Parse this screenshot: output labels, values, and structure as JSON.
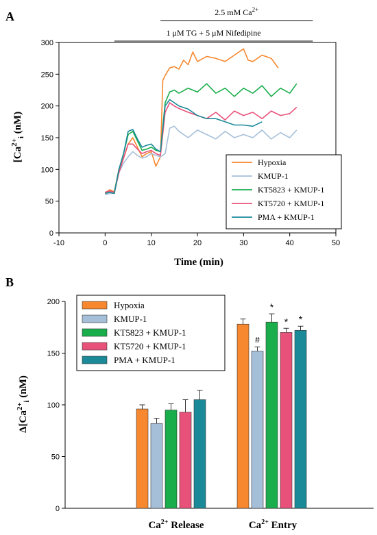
{
  "colors": {
    "hypoxia": "#f7882f",
    "kmup": "#a6bfd9",
    "kt5823": "#1aad4b",
    "kt5720": "#e8517a",
    "pma": "#1a8a98"
  },
  "chart_data": [
    {
      "panel": "A",
      "type": "line",
      "xlabel": "Time (min)",
      "ylabel": "[Ca2+]i (nM)",
      "xlim": [
        -10,
        50
      ],
      "ylim": [
        0,
        300
      ],
      "xticks": [
        "-10",
        "0",
        "10",
        "20",
        "30",
        "40",
        "50"
      ],
      "yticks": [
        "0",
        "50",
        "100",
        "150",
        "200",
        "250",
        "300"
      ],
      "annotations": [
        {
          "text": "2.5 mM Ca",
          "superscript": "2+",
          "x_start": 12,
          "x_end": 45
        },
        {
          "text": "1 μM TG + 5 μM Nifedipine",
          "x_start": 2,
          "x_end": 45
        }
      ],
      "legend_position": "bottom-right",
      "series": [
        {
          "name": "Hypoxia",
          "color_key": "hypoxia",
          "x": [
            0,
            1,
            2,
            3,
            4,
            5,
            6,
            7,
            8,
            9,
            10,
            11,
            12,
            12.5,
            13,
            14,
            15,
            16,
            17,
            18,
            19,
            20,
            22,
            24,
            26,
            28,
            30,
            31,
            32,
            34,
            36,
            37.5
          ],
          "y": [
            63,
            68,
            65,
            100,
            118,
            140,
            150,
            135,
            120,
            125,
            128,
            105,
            120,
            240,
            248,
            260,
            262,
            258,
            272,
            265,
            285,
            270,
            278,
            275,
            270,
            280,
            290,
            272,
            270,
            280,
            275,
            260
          ]
        },
        {
          "name": "KMUP-1",
          "color_key": "kmup",
          "x": [
            0,
            1,
            2,
            3,
            4,
            5,
            6,
            7,
            8,
            9,
            10,
            11,
            12,
            13,
            14,
            15,
            16,
            18,
            20,
            22,
            24,
            26,
            28,
            30,
            32,
            34,
            36,
            38,
            40,
            41.5
          ],
          "y": [
            60,
            62,
            62,
            95,
            110,
            120,
            128,
            122,
            118,
            120,
            125,
            122,
            120,
            125,
            165,
            168,
            160,
            150,
            162,
            155,
            148,
            160,
            150,
            155,
            150,
            162,
            148,
            158,
            150,
            162
          ]
        },
        {
          "name": "KT5823 + KMUP-1",
          "color_key": "kt5823",
          "x": [
            0,
            1,
            2,
            3,
            4,
            5,
            6,
            7,
            8,
            9,
            10,
            11,
            12,
            13,
            14,
            15,
            16,
            18,
            20,
            22,
            24,
            26,
            28,
            30,
            32,
            34,
            36,
            38,
            40,
            41.5
          ],
          "y": [
            62,
            66,
            64,
            100,
            125,
            155,
            160,
            145,
            130,
            132,
            135,
            130,
            128,
            205,
            222,
            225,
            220,
            228,
            222,
            235,
            220,
            228,
            215,
            228,
            220,
            232,
            215,
            228,
            220,
            235
          ]
        },
        {
          "name": "KT5720 + KMUP-1",
          "color_key": "kt5720",
          "x": [
            0,
            1,
            2,
            3,
            4,
            5,
            6,
            7,
            8,
            9,
            10,
            11,
            12,
            13,
            14,
            15,
            16,
            18,
            20,
            22,
            24,
            26,
            28,
            30,
            32,
            34,
            36,
            38,
            40,
            41.5
          ],
          "y": [
            64,
            66,
            64,
            95,
            118,
            140,
            140,
            132,
            125,
            128,
            130,
            125,
            122,
            190,
            205,
            200,
            196,
            190,
            185,
            180,
            190,
            178,
            192,
            185,
            190,
            180,
            192,
            185,
            188,
            198
          ]
        },
        {
          "name": "PMA + KMUP-1",
          "color_key": "pma",
          "x": [
            0,
            1,
            2,
            3,
            4,
            5,
            6,
            7,
            8,
            9,
            10,
            11,
            12,
            13,
            14,
            15,
            16,
            18,
            20,
            22,
            24,
            26,
            28,
            30,
            32,
            34
          ],
          "y": [
            62,
            64,
            62,
            100,
            125,
            160,
            163,
            148,
            135,
            138,
            140,
            132,
            128,
            200,
            210,
            205,
            200,
            195,
            185,
            180,
            180,
            175,
            170,
            170,
            168,
            175
          ]
        }
      ]
    },
    {
      "panel": "B",
      "type": "bar",
      "ylabel": "Δ[Ca2+]i (nM)",
      "ylim": [
        0,
        200
      ],
      "yticks": [
        "0",
        "50",
        "100",
        "150",
        "200"
      ],
      "categories": [
        "Ca2+ Release",
        "Ca2+ Entry"
      ],
      "legend_position": "top-left",
      "series": [
        {
          "name": "Hypoxia",
          "color_key": "hypoxia",
          "values": [
            96,
            178
          ],
          "errors": [
            4,
            5
          ],
          "marks": [
            "",
            ""
          ]
        },
        {
          "name": "KMUP-1",
          "color_key": "kmup",
          "values": [
            82,
            152
          ],
          "errors": [
            5,
            4
          ],
          "marks": [
            "",
            "#"
          ]
        },
        {
          "name": "KT5823 + KMUP-1",
          "color_key": "kt5823",
          "values": [
            95,
            180
          ],
          "errors": [
            6,
            8
          ],
          "marks": [
            "",
            "*"
          ]
        },
        {
          "name": "KT5720 + KMUP-1",
          "color_key": "kt5720",
          "values": [
            93,
            170
          ],
          "errors": [
            12,
            4
          ],
          "marks": [
            "",
            "*"
          ]
        },
        {
          "name": "PMA + KMUP-1",
          "color_key": "pma",
          "values": [
            105,
            172
          ],
          "errors": [
            9,
            4
          ],
          "marks": [
            "",
            "*"
          ]
        }
      ]
    }
  ],
  "panel_labels": {
    "a": "A",
    "b": "B"
  },
  "xaxis_category_labels": [
    {
      "base": "Ca",
      "sup": "2+",
      "rest": " Release"
    },
    {
      "base": "Ca",
      "sup": "2+",
      "rest": " Entry"
    }
  ]
}
